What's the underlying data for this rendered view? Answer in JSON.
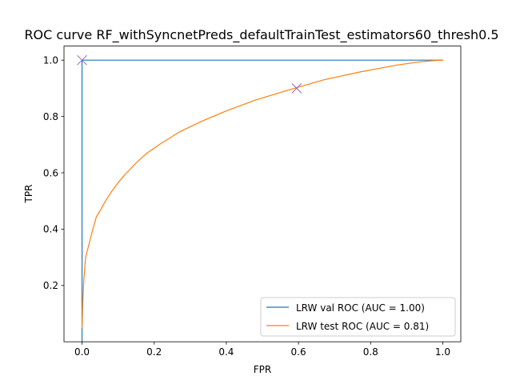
{
  "chart_data": {
    "type": "line",
    "title": "ROC curve RF_withSyncnetPreds_defaultTrainTest_estimators60_thresh0.5",
    "xlabel": "FPR",
    "ylabel": "TPR",
    "xlim": [
      -0.05,
      1.05
    ],
    "ylim": [
      0.0,
      1.05
    ],
    "xticks": [
      0.0,
      0.2,
      0.4,
      0.6,
      0.8,
      1.0
    ],
    "yticks": [
      0.2,
      0.4,
      0.6,
      0.8,
      1.0
    ],
    "xtick_labels": [
      "0.0",
      "0.2",
      "0.4",
      "0.6",
      "0.8",
      "1.0"
    ],
    "ytick_labels": [
      "0.2",
      "0.4",
      "0.6",
      "0.8",
      "1.0"
    ],
    "grid": false,
    "legend_position": "lower-right",
    "series": [
      {
        "name": "LRW val ROC (AUC = 1.00)",
        "color": "#1f77b4",
        "x": [
          0.0,
          0.0,
          0.0,
          1.0
        ],
        "y": [
          0.0,
          0.05,
          1.0,
          1.0
        ]
      },
      {
        "name": "LRW test ROC (AUC = 0.81)",
        "color": "#ff7f0e",
        "x": [
          0.0,
          0.002,
          0.005,
          0.01,
          0.02,
          0.03,
          0.04,
          0.05,
          0.065,
          0.08,
          0.1,
          0.12,
          0.15,
          0.18,
          0.22,
          0.27,
          0.33,
          0.4,
          0.48,
          0.57,
          0.67,
          0.77,
          0.87,
          0.93,
          0.97,
          1.0
        ],
        "y": [
          0.05,
          0.14,
          0.22,
          0.3,
          0.35,
          0.4,
          0.445,
          0.465,
          0.5,
          0.53,
          0.565,
          0.595,
          0.635,
          0.67,
          0.705,
          0.745,
          0.782,
          0.82,
          0.858,
          0.893,
          0.93,
          0.958,
          0.982,
          0.993,
          0.998,
          1.0
        ]
      }
    ],
    "markers": [
      {
        "x": 0.0,
        "y": 1.0,
        "symbol": "x",
        "color": "#9467bd"
      },
      {
        "x": 0.595,
        "y": 0.9,
        "symbol": "x",
        "color": "#9467bd"
      }
    ]
  }
}
